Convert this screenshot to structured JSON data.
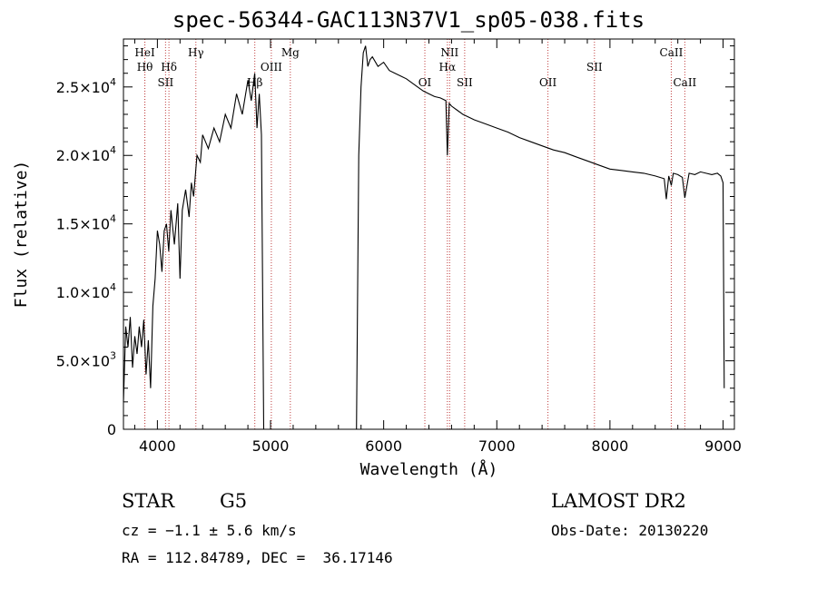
{
  "chart_data": {
    "type": "line",
    "title": "spec-56344-GAC113N37V1_sp05-038.fits",
    "xlabel": "Wavelength (Å)",
    "ylabel": "Flux (relative)",
    "xlim": [
      3700,
      9100
    ],
    "ylim": [
      0,
      28500
    ],
    "x_ticks": [
      4000,
      5000,
      6000,
      7000,
      8000,
      9000
    ],
    "x_tick_labels": [
      "4000",
      "5000",
      "6000",
      "7000",
      "8000",
      "9000"
    ],
    "y_ticks": [
      0,
      5000,
      10000,
      15000,
      20000,
      25000
    ],
    "y_tick_labels": [
      {
        "mant": "0",
        "exp": ""
      },
      {
        "mant": "5.0×10",
        "exp": "3"
      },
      {
        "mant": "1.0×10",
        "exp": "4"
      },
      {
        "mant": "1.5×10",
        "exp": "4"
      },
      {
        "mant": "2.0×10",
        "exp": "4"
      },
      {
        "mant": "2.5×10",
        "exp": "4"
      }
    ],
    "grid": false,
    "series": [
      {
        "color": "#000000",
        "x": [
          3700,
          3720,
          3740,
          3760,
          3780,
          3800,
          3820,
          3840,
          3860,
          3880,
          3900,
          3920,
          3940,
          3960,
          3980,
          4000,
          4020,
          4040,
          4060,
          4080,
          4100,
          4120,
          4150,
          4180,
          4200,
          4220,
          4250,
          4280,
          4300,
          4320,
          4350,
          4380,
          4400,
          4450,
          4500,
          4550,
          4600,
          4650,
          4700,
          4750,
          4800,
          4830,
          4860,
          4880,
          4900,
          4920,
          4940,
          4950,
          4960,
          5760,
          5780,
          5800,
          5820,
          5840,
          5860,
          5880,
          5900,
          5950,
          6000,
          6050,
          6100,
          6150,
          6200,
          6250,
          6300,
          6350,
          6400,
          6450,
          6500,
          6550,
          6563,
          6580,
          6600,
          6650,
          6700,
          6800,
          6900,
          7000,
          7100,
          7200,
          7300,
          7400,
          7500,
          7600,
          7700,
          7800,
          7900,
          8000,
          8100,
          8200,
          8300,
          8400,
          8480,
          8498,
          8520,
          8542,
          8560,
          8600,
          8640,
          8662,
          8700,
          8750,
          8800,
          8850,
          8900,
          8950,
          8980,
          9000,
          9010
        ],
        "y": [
          2000,
          7500,
          6000,
          8200,
          4500,
          6800,
          5500,
          7500,
          6000,
          8000,
          4000,
          6500,
          3000,
          9000,
          11000,
          14500,
          13500,
          11500,
          14500,
          15000,
          13000,
          16000,
          13500,
          16500,
          11000,
          16000,
          17500,
          15500,
          18000,
          17000,
          20000,
          19500,
          21500,
          20500,
          22000,
          21000,
          23000,
          22000,
          24500,
          23000,
          25500,
          24000,
          26000,
          22000,
          24500,
          21500,
          0,
          0,
          0,
          0,
          20000,
          25000,
          27500,
          28000,
          26500,
          27000,
          27200,
          26500,
          26800,
          26200,
          26000,
          25800,
          25600,
          25300,
          25000,
          24700,
          24500,
          24300,
          24200,
          24000,
          20000,
          23800,
          23600,
          23300,
          23000,
          22600,
          22300,
          22000,
          21700,
          21300,
          21000,
          20700,
          20400,
          20200,
          19900,
          19600,
          19300,
          19000,
          18900,
          18800,
          18700,
          18500,
          18300,
          16800,
          18500,
          17800,
          18700,
          18600,
          18400,
          16900,
          18700,
          18600,
          18800,
          18700,
          18600,
          18700,
          18500,
          18000,
          3000
        ]
      }
    ],
    "lines": [
      {
        "wave": 3889,
        "label": "HeI",
        "row": 1
      },
      {
        "wave": 3889,
        "label": "Hθ",
        "row": 2
      },
      {
        "wave": 4072,
        "label": "SII",
        "row": 3
      },
      {
        "wave": 4102,
        "label": "Hδ",
        "row": 2
      },
      {
        "wave": 4340,
        "label": "Hγ",
        "row": 1
      },
      {
        "wave": 4861,
        "label": "Hβ",
        "row": 3
      },
      {
        "wave": 5007,
        "label": "OIII",
        "row": 2
      },
      {
        "wave": 5175,
        "label": "Mg",
        "row": 1
      },
      {
        "wave": 6364,
        "label": "OI",
        "row": 3
      },
      {
        "wave": 6563,
        "label": "Hα",
        "row": 2
      },
      {
        "wave": 6583,
        "label": "NII",
        "row": 1
      },
      {
        "wave": 6716,
        "label": "SII",
        "row": 3
      },
      {
        "wave": 7452,
        "label": "OII",
        "row": 3
      },
      {
        "wave": 7863,
        "label": "SII",
        "row": 2
      },
      {
        "wave": 8542,
        "label": "CaII",
        "row": 1
      },
      {
        "wave": 8662,
        "label": "CaII",
        "row": 3
      }
    ],
    "line_color": "#c04040"
  },
  "info": {
    "class": "STAR",
    "subclass": "G5",
    "survey": "LAMOST DR2",
    "cz": "cz = −1.1 ± 5.6 km/s",
    "obsdate": "Obs-Date: 20130220",
    "radec": "RA = 112.84789, DEC =  36.17146"
  }
}
